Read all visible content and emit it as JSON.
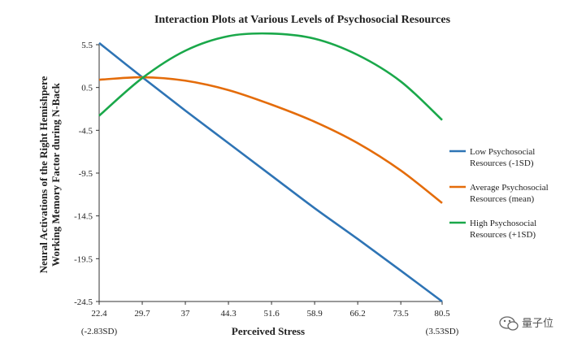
{
  "chart_data": {
    "type": "line",
    "title": "Interaction Plots at Various Levels of Psychosocial Resources",
    "xlabel": "Perceived Stress",
    "ylabel_lines": [
      "Neural Activations of the Right Hemishpere",
      "Working Memory Factor during N-Back"
    ],
    "xlim": [
      22.4,
      80.5
    ],
    "ylim": [
      -24.5,
      5.5
    ],
    "x_ticks": [
      "22.4",
      "29.7",
      "37",
      "44.3",
      "51.6",
      "58.9",
      "66.2",
      "73.5",
      "80.5"
    ],
    "x_tick_values": [
      22.4,
      29.7,
      37,
      44.3,
      51.6,
      58.9,
      66.2,
      73.5,
      80.5
    ],
    "x_endpoint_notes": [
      "(-2.83SD)",
      "(3.53SD)"
    ],
    "y_ticks": [
      "5.5",
      "0.5",
      "-4.5",
      "-9.5",
      "-14.5",
      "-19.5",
      "-24.5"
    ],
    "y_tick_values": [
      5.5,
      0.5,
      -4.5,
      -9.5,
      -14.5,
      -19.5,
      -24.5
    ],
    "grid": false,
    "legend_position": "right",
    "x": [
      22.4,
      29.7,
      37,
      44.3,
      51.6,
      58.9,
      66.2,
      73.5,
      80.5
    ],
    "series": [
      {
        "name": "Low Psychosocial Resources (-1SD)",
        "legend_lines": [
          "Low Psychosocial",
          "Resources (-1SD)"
        ],
        "color": "#2e74b5",
        "values": [
          5.7,
          1.7,
          -2.2,
          -6.0,
          -9.8,
          -13.6,
          -17.2,
          -20.9,
          -24.5
        ]
      },
      {
        "name": "Average Psychosocial Resources (mean)",
        "legend_lines": [
          "Average Psychosocial",
          "Resources (mean)"
        ],
        "color": "#e46c0a",
        "values": [
          1.4,
          1.7,
          1.3,
          0.2,
          -1.5,
          -3.5,
          -6.0,
          -9.2,
          -13.0
        ]
      },
      {
        "name": "High Psychosocial Resources (+1SD)",
        "legend_lines": [
          "High Psychosocial",
          "Resources (+1SD)"
        ],
        "color": "#1aa84a",
        "values": [
          -2.8,
          1.6,
          4.8,
          6.5,
          6.8,
          6.2,
          4.3,
          1.2,
          -3.3
        ]
      }
    ]
  },
  "watermark": {
    "icon": "wechat-bubble-icon",
    "text": "量子位"
  }
}
